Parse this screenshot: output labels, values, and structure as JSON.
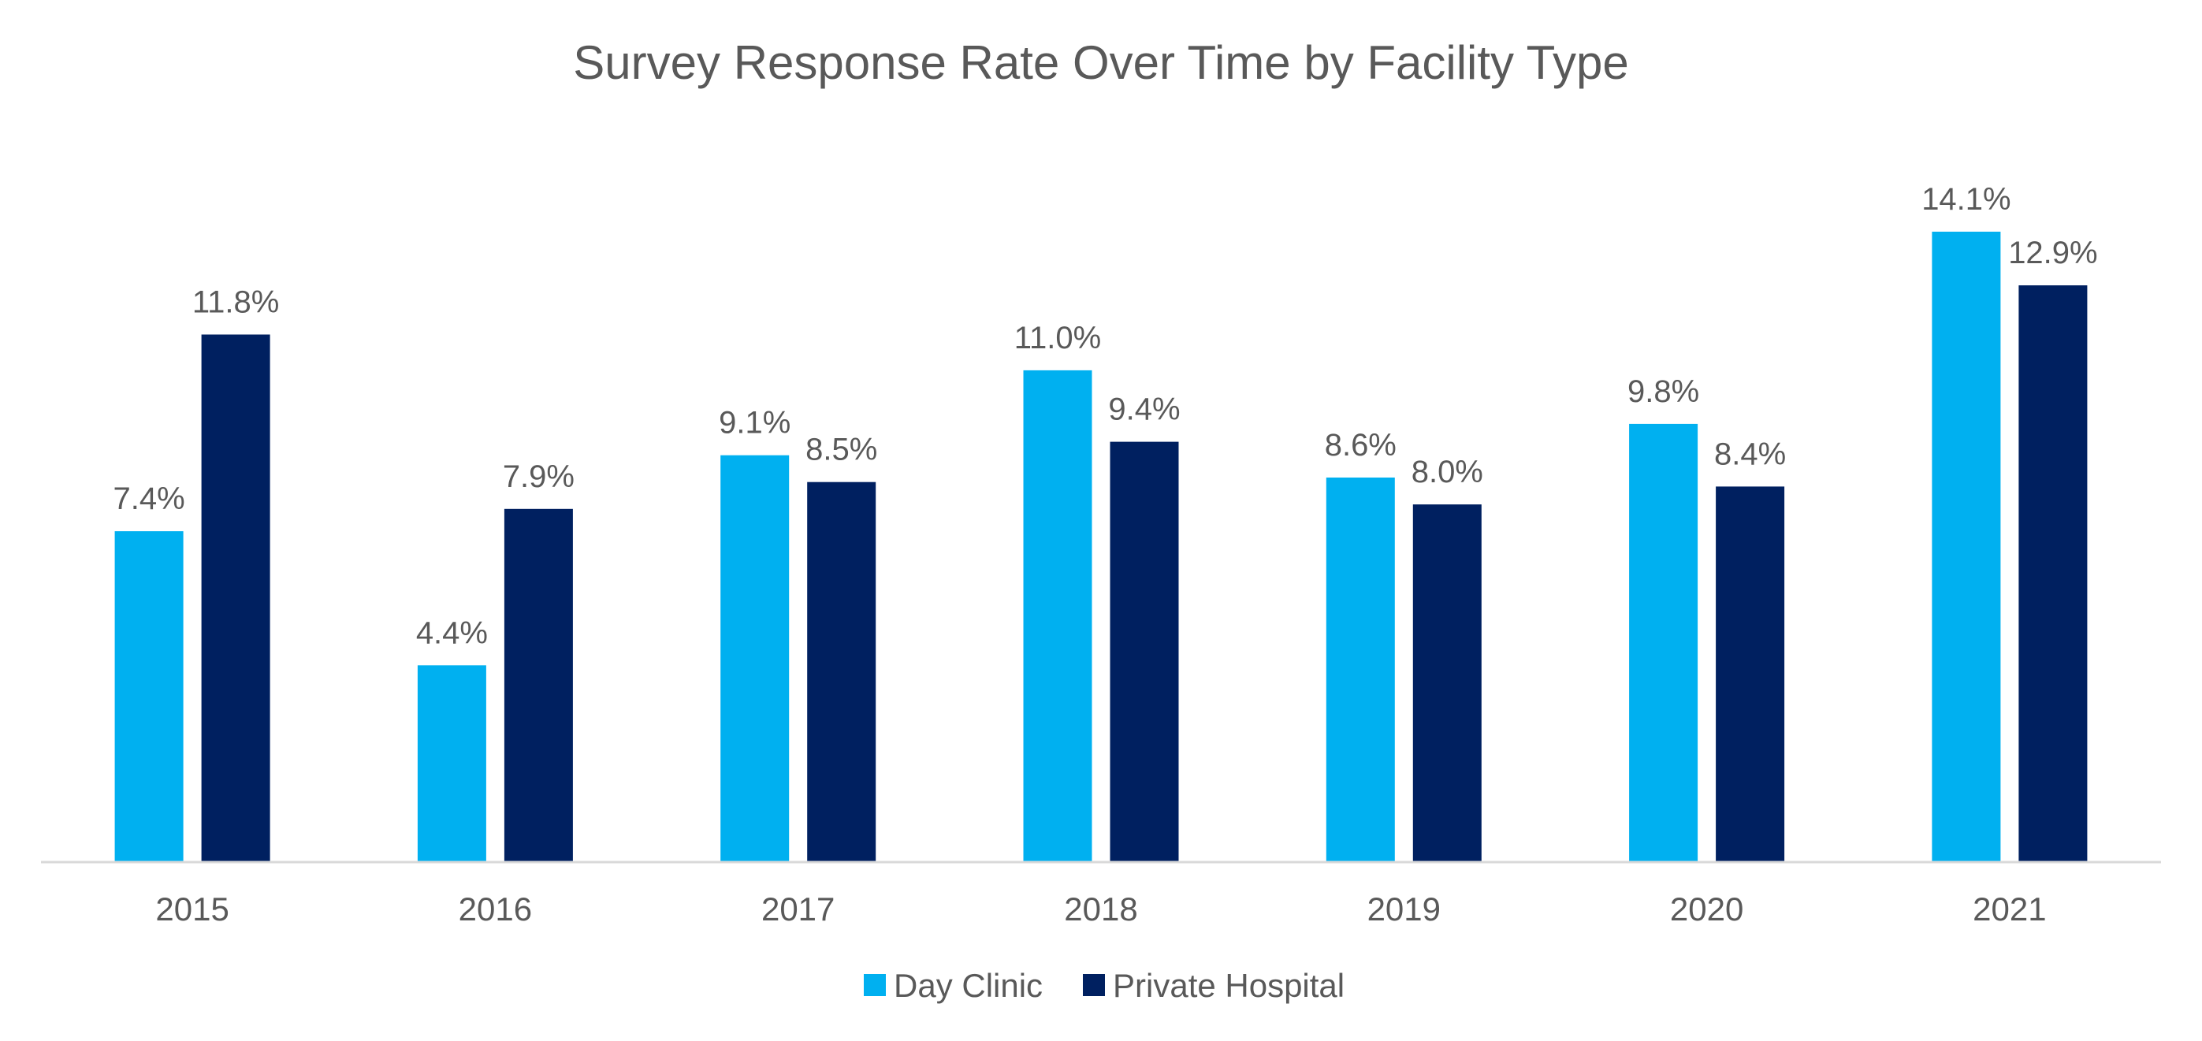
{
  "chart_data": {
    "type": "bar",
    "title": "Survey Response Rate Over Time by Facility Type",
    "xlabel": "",
    "ylabel": "",
    "categories": [
      "2015",
      "2016",
      "2017",
      "2018",
      "2019",
      "2020",
      "2021"
    ],
    "series": [
      {
        "name": "Day Clinic",
        "color": "#00B0F0",
        "values": [
          7.4,
          4.4,
          9.1,
          11.0,
          8.6,
          9.8,
          14.1
        ],
        "labels": [
          "7.4%",
          "4.4%",
          "9.1%",
          "11.0%",
          "8.6%",
          "9.8%",
          "14.1%"
        ]
      },
      {
        "name": "Private Hospital",
        "color": "#002060",
        "values": [
          11.8,
          7.9,
          8.5,
          9.4,
          8.0,
          8.4,
          12.9
        ],
        "labels": [
          "11.8%",
          "7.9%",
          "8.5%",
          "9.4%",
          "8.0%",
          "8.4%",
          "12.9%"
        ]
      }
    ],
    "ylim": [
      0,
      16
    ],
    "grid": false,
    "legend": "bottom-center",
    "axis_color": "#D9D9D9",
    "text_color": "#595959"
  }
}
